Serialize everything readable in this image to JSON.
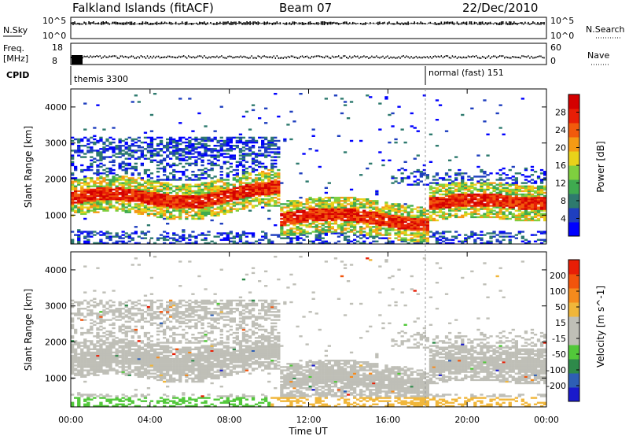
{
  "header": {
    "title": "Falkland Islands (fitACF)",
    "beam": "Beam 07",
    "date": "22/Dec/2010"
  },
  "strip_labels": {
    "nsky": "N.Sky",
    "nsearch": "N.Search",
    "freq": "Freq.",
    "freq_unit": "[MHz]",
    "nave": "Nave",
    "cpid": "CPID",
    "nsky_ticks": [
      "10^5",
      "10^0"
    ],
    "nsearch_ticks": [
      "10^5",
      "10^0"
    ],
    "freq_ticks": [
      "18",
      "8"
    ],
    "nave_ticks": [
      "60",
      "0"
    ],
    "cpid_segments": [
      "themis 3300",
      "normal (fast) 151"
    ]
  },
  "chart_data": [
    {
      "type": "heatmap",
      "name": "power",
      "ylabel": "Slant Range [km]",
      "ylim": [
        200,
        4500
      ],
      "yticks": [
        "1000",
        "2000",
        "3000",
        "4000"
      ],
      "xticks": [
        "00:00",
        "04:00",
        "08:00",
        "12:00",
        "16:00",
        "20:00",
        "00:00"
      ],
      "xlim": [
        0,
        24
      ],
      "colorbar": {
        "label": "Power [dB]",
        "ticks": [
          "28",
          "24",
          "20",
          "16",
          "12",
          "8",
          "4"
        ],
        "colors": [
          "#0000ff",
          "#1f3fbf",
          "#2e7a6e",
          "#3faa4f",
          "#7fcf3f",
          "#e8d21a",
          "#f59a14",
          "#f25a0c",
          "#e81e06",
          "#d40000"
        ]
      }
    },
    {
      "type": "heatmap",
      "name": "velocity",
      "ylabel": "Slant Range [km]",
      "ylim": [
        200,
        4500
      ],
      "yticks": [
        "1000",
        "2000",
        "3000",
        "4000"
      ],
      "xticks": [
        "00:00",
        "04:00",
        "08:00",
        "12:00",
        "16:00",
        "20:00",
        "00:00"
      ],
      "xlim": [
        0,
        24
      ],
      "xlabel": "Time UT",
      "colorbar": {
        "label": "Velocity [m s^-1]",
        "ticks": [
          "200",
          "100",
          "50",
          "15",
          "-15",
          "-50",
          "-100",
          "-200"
        ],
        "colors": [
          "#1a1acc",
          "#2e5fb5",
          "#2e8a4a",
          "#52c83a",
          "#bfbfb7",
          "#bfbfb7",
          "#f0b63a",
          "#f58a1c",
          "#f2540c",
          "#e81e06"
        ]
      }
    }
  ]
}
